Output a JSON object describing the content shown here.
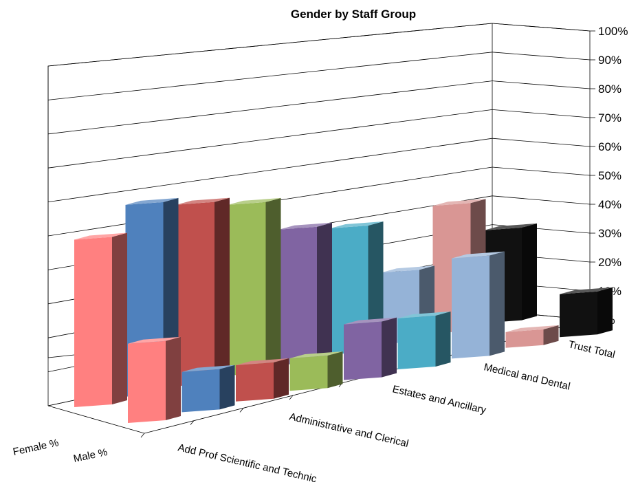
{
  "chart_data": {
    "type": "bar",
    "variant": "3d-column",
    "title": "Gender by Staff Group",
    "categories": [
      "Add Prof Scientific and Technic",
      "",
      "Administrative and Clerical",
      "",
      "Estates and Ancillary",
      "",
      "Medical and Dental",
      "",
      "Trust Total"
    ],
    "series": [
      {
        "name": "Female %",
        "values": [
          68,
          83,
          84,
          85,
          73,
          74,
          46,
          91,
          74
        ]
      },
      {
        "name": "Male %",
        "values": [
          32,
          17,
          16,
          15,
          27,
          26,
          54,
          9,
          26
        ]
      }
    ],
    "ylim": [
      0,
      100
    ],
    "y_ticks": [
      "0%",
      "10%",
      "20%",
      "30%",
      "40%",
      "50%",
      "60%",
      "70%",
      "80%",
      "90%",
      "100%"
    ],
    "grid": true,
    "colors": [
      "#ff8080",
      "#4f81bd",
      "#c0504d",
      "#9bbb59",
      "#8064a2",
      "#4bacc6",
      "#95b3d7",
      "#d99694",
      "#111111"
    ]
  }
}
